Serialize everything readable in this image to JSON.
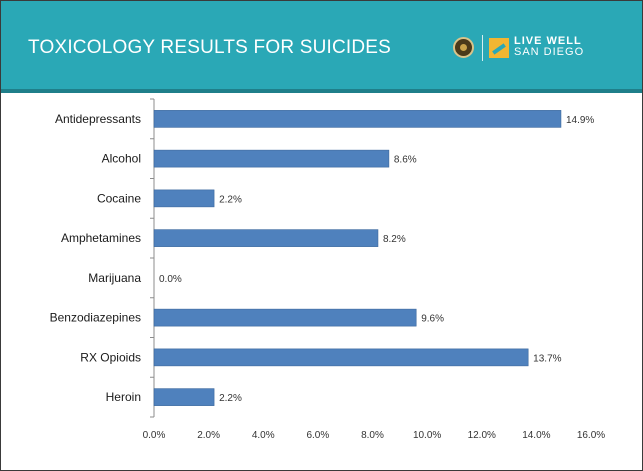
{
  "header": {
    "title": "TOXICOLOGY RESULTS FOR SUICIDES",
    "logo_text_line1": "LIVE WELL",
    "logo_text_line2": "SAN DIEGO",
    "seal_icon": "county-seal-icon",
    "logo_icon": "live-well-logo-icon"
  },
  "colors": {
    "header_bg": "#2aa8b6",
    "bar": "#4f81bd",
    "bar_edge": "#3b679c"
  },
  "chart_data": {
    "type": "bar",
    "orientation": "horizontal",
    "categories": [
      "Antidepressants",
      "Alcohol",
      "Cocaine",
      "Amphetamines",
      "Marijuana",
      "Benzodiazepines",
      "RX Opioids",
      "Heroin"
    ],
    "values": [
      14.9,
      8.6,
      2.2,
      8.2,
      0.0,
      9.6,
      13.7,
      2.2
    ],
    "value_labels": [
      "14.9%",
      "8.6%",
      "2.2%",
      "8.2%",
      "0.0%",
      "9.6%",
      "13.7%",
      "2.2%"
    ],
    "xlim": [
      0,
      16
    ],
    "xticks": [
      "0.0%",
      "2.0%",
      "4.0%",
      "6.0%",
      "8.0%",
      "10.0%",
      "12.0%",
      "14.0%",
      "16.0%"
    ],
    "grid": false,
    "legend": "none"
  }
}
